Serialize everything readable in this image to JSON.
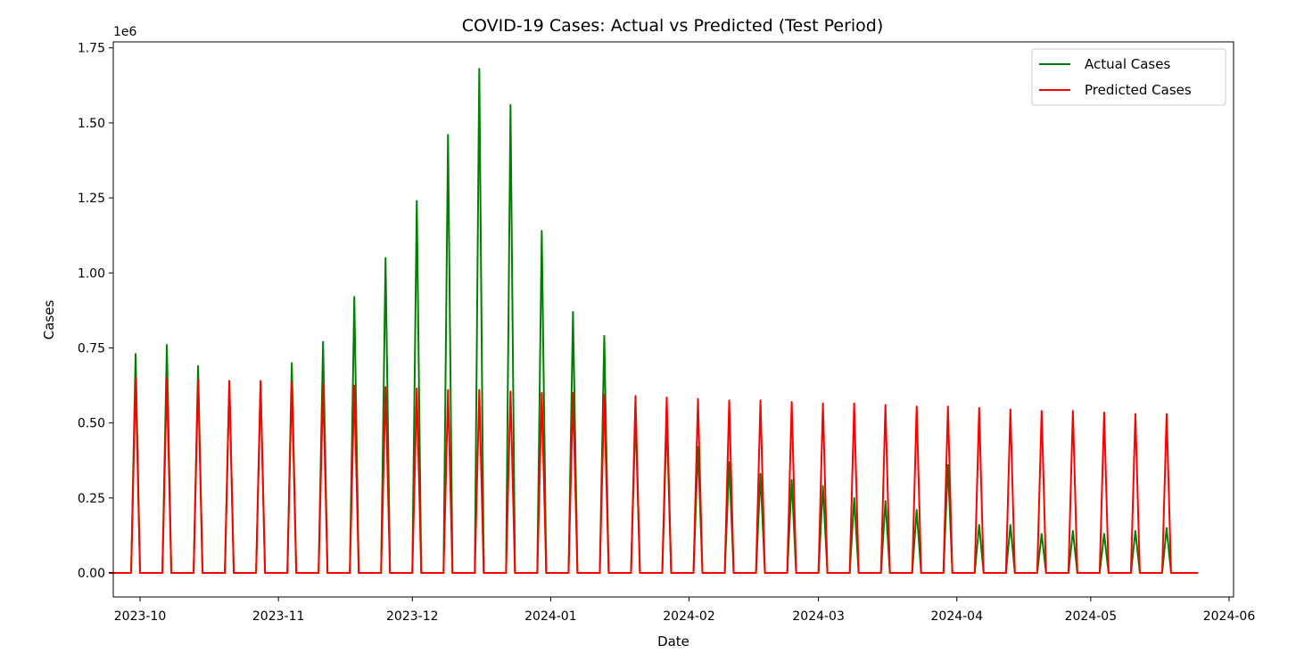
{
  "chart_data": {
    "type": "line",
    "title": "COVID-19 Cases: Actual vs Predicted (Test Period)",
    "xlabel": "Date",
    "ylabel": "Cases",
    "y_offset_label": "1e6",
    "xlim": [
      "2023-09-25",
      "2024-06-02"
    ],
    "ylim": [
      -0.08,
      1.77
    ],
    "y_ticks": [
      0.0,
      0.25,
      0.5,
      0.75,
      1.0,
      1.25,
      1.5,
      1.75
    ],
    "y_tick_labels": [
      "0.00",
      "0.25",
      "0.50",
      "0.75",
      "1.00",
      "1.25",
      "1.50",
      "1.75"
    ],
    "x_ticks": [
      "2023-10-01",
      "2023-11-01",
      "2023-12-01",
      "2024-01-01",
      "2024-02-01",
      "2024-03-01",
      "2024-04-01",
      "2024-05-01",
      "2024-06-01"
    ],
    "x_tick_labels": [
      "2023-10",
      "2023-11",
      "2023-12",
      "2024-01",
      "2024-02",
      "2024-03",
      "2024-04",
      "2024-05",
      "2024-06"
    ],
    "grid": false,
    "legend_position": "top-right",
    "y_unit_scale": 1000000,
    "range": [
      "2023-09-24",
      "2024-05-25"
    ],
    "baseline": 0,
    "peak_dates": [
      "2023-09-30",
      "2023-10-07",
      "2023-10-14",
      "2023-10-21",
      "2023-10-28",
      "2023-11-04",
      "2023-11-11",
      "2023-11-18",
      "2023-11-25",
      "2023-12-02",
      "2023-12-09",
      "2023-12-16",
      "2023-12-23",
      "2023-12-30",
      "2024-01-06",
      "2024-01-13",
      "2024-01-20",
      "2024-01-27",
      "2024-02-03",
      "2024-02-10",
      "2024-02-17",
      "2024-02-24",
      "2024-03-02",
      "2024-03-09",
      "2024-03-16",
      "2024-03-23",
      "2024-03-30",
      "2024-04-06",
      "2024-04-13",
      "2024-04-20",
      "2024-04-27",
      "2024-05-04",
      "2024-05-11",
      "2024-05-18"
    ],
    "series": [
      {
        "name": "Actual Cases",
        "color": "#008000",
        "peaks": [
          0.73,
          0.76,
          0.69,
          0.64,
          0.63,
          0.7,
          0.77,
          0.92,
          1.05,
          1.24,
          1.46,
          1.68,
          1.56,
          1.14,
          0.87,
          0.79,
          0.53,
          0.52,
          0.42,
          0.37,
          0.33,
          0.31,
          0.29,
          0.25,
          0.24,
          0.21,
          0.36,
          0.16,
          0.16,
          0.13,
          0.14,
          0.13,
          0.14,
          0.15
        ]
      },
      {
        "name": "Predicted Cases",
        "color": "#ff0000",
        "peaks": [
          0.65,
          0.65,
          0.645,
          0.64,
          0.64,
          0.635,
          0.63,
          0.625,
          0.62,
          0.615,
          0.61,
          0.61,
          0.605,
          0.6,
          0.6,
          0.595,
          0.59,
          0.585,
          0.58,
          0.575,
          0.575,
          0.57,
          0.565,
          0.565,
          0.56,
          0.555,
          0.555,
          0.55,
          0.545,
          0.54,
          0.54,
          0.535,
          0.53,
          0.53
        ]
      }
    ]
  }
}
